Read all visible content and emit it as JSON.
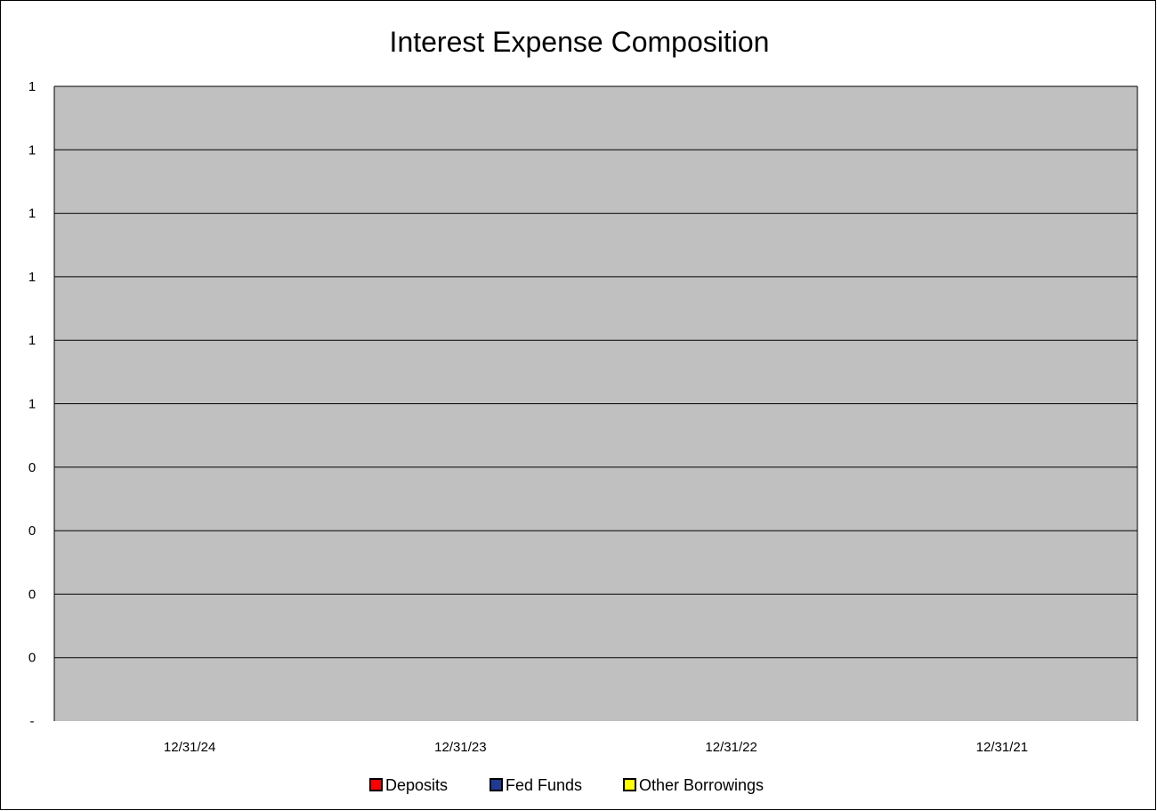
{
  "chart_data": {
    "type": "bar",
    "stacked": true,
    "title": "Interest Expense Composition",
    "xlabel": "",
    "ylabel": "",
    "categories": [
      "12/31/24",
      "12/31/23",
      "12/31/22",
      "12/31/21"
    ],
    "series": [
      {
        "name": "Deposits",
        "color": "#ff0000",
        "values": [
          0,
          0,
          0,
          0
        ]
      },
      {
        "name": "Fed Funds",
        "color": "#1f3a93",
        "values": [
          0,
          0,
          0,
          0
        ]
      },
      {
        "name": "Other Borrowings",
        "color": "#ffff00",
        "values": [
          0,
          0,
          0,
          0
        ]
      }
    ],
    "y_tick_labels": [
      "-",
      "0",
      "0",
      "0",
      "0",
      "1",
      "1",
      "1",
      "1",
      "1",
      "1"
    ],
    "ylim": [
      0,
      1
    ],
    "grid": true,
    "plot_background": "#c0c0c0",
    "legend_position": "bottom"
  }
}
